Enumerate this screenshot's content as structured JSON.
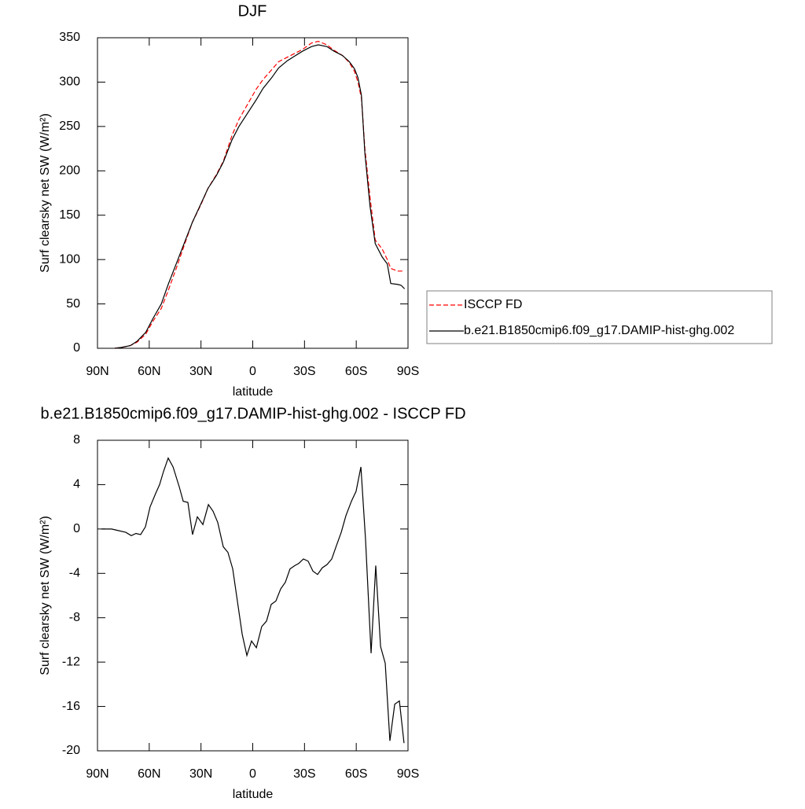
{
  "chart_data": [
    {
      "type": "line",
      "title": "DJF",
      "xlabel": "latitude",
      "ylabel": "Surf clearsky net SW (W/m²)",
      "xlim": [
        90,
        -90
      ],
      "xticks": [
        {
          "value": 90,
          "label": "90N"
        },
        {
          "value": 60,
          "label": "60N"
        },
        {
          "value": 30,
          "label": "30N"
        },
        0,
        {
          "value": -30,
          "label": "30S"
        },
        {
          "value": -60,
          "label": "60S"
        },
        {
          "value": -90,
          "label": "90S"
        }
      ],
      "ylim": [
        0,
        350
      ],
      "yticks": [
        0,
        50,
        100,
        150,
        200,
        250,
        300,
        350
      ],
      "x": [
        80,
        76,
        71,
        67,
        62,
        58,
        53,
        49,
        44,
        39,
        35,
        30,
        26,
        21,
        17,
        12,
        8,
        3,
        -2,
        -6,
        -11,
        -15,
        -20,
        -24,
        -29,
        -34,
        -38,
        -43,
        -47,
        -52,
        -56,
        -59,
        -61,
        -63,
        -65,
        -68,
        -71,
        -75,
        -78,
        -80,
        -84,
        -86,
        -88
      ],
      "legend": "right",
      "series": [
        {
          "name": "ISCCP FD",
          "color": "#ff0000",
          "dash": true,
          "values": [
            0,
            1,
            3,
            7,
            16,
            30,
            45,
            65,
            92,
            120,
            142,
            162,
            180,
            196,
            211,
            240,
            258,
            275,
            292,
            303,
            314,
            323,
            328,
            332,
            337,
            344,
            346,
            342,
            336,
            330,
            322,
            312,
            300,
            282,
            225,
            170,
            122,
            112,
            100,
            90,
            87,
            87,
            87
          ]
        },
        {
          "name": "b.e21.B1850cmip6.f09_g17.DAMIP-hist-ghg.002",
          "color": "#000000",
          "dash": false,
          "values": [
            0,
            1,
            3,
            8,
            18,
            33,
            50,
            72,
            97,
            122,
            142,
            163,
            180,
            195,
            210,
            235,
            250,
            265,
            280,
            293,
            305,
            316,
            324,
            329,
            335,
            340,
            342,
            340,
            335,
            330,
            323,
            315,
            305,
            285,
            220,
            160,
            118,
            103,
            95,
            73,
            72,
            71,
            67
          ]
        }
      ]
    },
    {
      "type": "line",
      "title": "b.e21.B1850cmip6.f09_g17.DAMIP-hist-ghg.002 - ISCCP FD",
      "xlabel": "latitude",
      "ylabel": "Surf clearsky net SW (W/m²)",
      "xlim": [
        90,
        -90
      ],
      "xticks": [
        {
          "value": 90,
          "label": "90N"
        },
        {
          "value": 60,
          "label": "60N"
        },
        {
          "value": 30,
          "label": "30N"
        },
        0,
        {
          "value": -30,
          "label": "30S"
        },
        {
          "value": -60,
          "label": "60S"
        },
        {
          "value": -90,
          "label": "90S"
        }
      ],
      "ylim": [
        -20,
        8
      ],
      "yticks": [
        -20,
        -16,
        -12,
        -8,
        -4,
        0,
        4,
        8
      ],
      "x": [
        87.7,
        81.8,
        79.1,
        73.6,
        70.4,
        67.7,
        65,
        62.2,
        59.5,
        56.3,
        54,
        51.7,
        49,
        46.2,
        42.6,
        40.3,
        37.6,
        34.9,
        32.1,
        28.9,
        25.7,
        23,
        20.3,
        17.1,
        14.4,
        11.6,
        8.9,
        6.1,
        3.4,
        0.7,
        -2.1,
        -5.2,
        -8,
        -10.7,
        -13.4,
        -16.2,
        -18.9,
        -21.6,
        -24.4,
        -26.7,
        -29.4,
        -32.1,
        -34.9,
        -37.6,
        -40.3,
        -43.1,
        -45.8,
        -48.5,
        -51.3,
        -54,
        -57.2,
        -59.9,
        -62.7,
        -65.4,
        -68.6,
        -71.3,
        -74.1,
        -76.8,
        -79.5,
        -82.3,
        -85,
        -87.7
      ],
      "color": "#000000",
      "values": [
        0,
        0,
        -0.1,
        -0.3,
        -0.6,
        -0.4,
        -0.5,
        0.2,
        2,
        3.2,
        4,
        5.2,
        6.4,
        5.6,
        3.8,
        2.5,
        2.4,
        -0.5,
        1.1,
        0.4,
        2.2,
        1.6,
        0.6,
        -1.6,
        -2.1,
        -3.6,
        -6.5,
        -9.5,
        -11.4,
        -10.1,
        -10.7,
        -8.8,
        -8.3,
        -6.8,
        -6.5,
        -5.4,
        -4.8,
        -3.6,
        -3.3,
        -3.1,
        -2.7,
        -2.9,
        -3.8,
        -4.1,
        -3.5,
        -3.2,
        -2.7,
        -1.5,
        -0.3,
        1.2,
        2.5,
        3.4,
        5.6,
        -1,
        -11.2,
        -3.3,
        -10.6,
        -12.1,
        -19.1,
        -15.8,
        -15.5,
        -19.3
      ]
    }
  ]
}
